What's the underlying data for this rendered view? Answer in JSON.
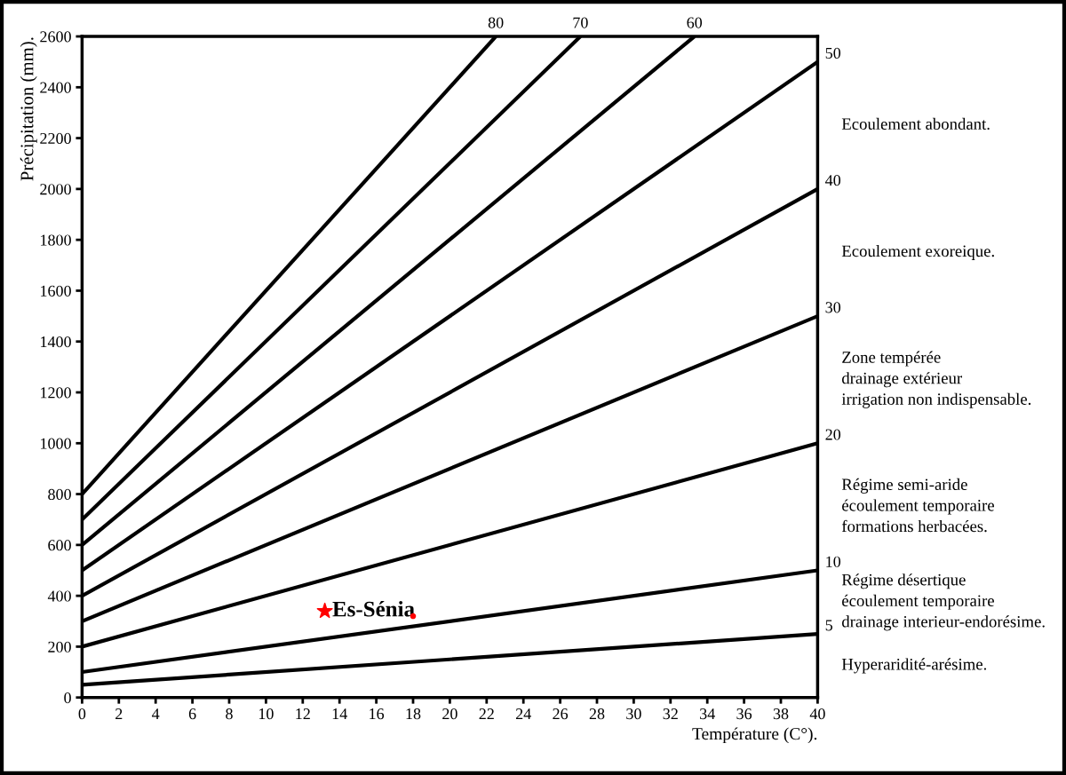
{
  "chart_data": {
    "type": "line",
    "xlabel": "Température (C°).",
    "ylabel": "Précipitation (mm).",
    "xlim": [
      0,
      40
    ],
    "ylim": [
      0,
      2600
    ],
    "xticks": [
      0,
      2,
      4,
      6,
      8,
      10,
      12,
      14,
      16,
      18,
      20,
      22,
      24,
      26,
      28,
      30,
      32,
      34,
      36,
      38,
      40
    ],
    "yticks": [
      0,
      200,
      400,
      600,
      800,
      1000,
      1200,
      1400,
      1600,
      1800,
      2000,
      2200,
      2400,
      2600
    ],
    "grid": false,
    "legend": false,
    "line_style": "solid",
    "series": [
      {
        "name": "80",
        "color": "#000000",
        "x": [
          0,
          22.5
        ],
        "values": [
          800,
          2600
        ]
      },
      {
        "name": "70",
        "color": "#000000",
        "x": [
          0,
          27.1
        ],
        "values": [
          700,
          2600
        ]
      },
      {
        "name": "60",
        "color": "#000000",
        "x": [
          0,
          33.3
        ],
        "values": [
          600,
          2600
        ]
      },
      {
        "name": "50",
        "color": "#000000",
        "x": [
          0,
          40
        ],
        "values": [
          500,
          2500
        ]
      },
      {
        "name": "40",
        "color": "#000000",
        "x": [
          0,
          40
        ],
        "values": [
          400,
          2000
        ]
      },
      {
        "name": "30",
        "color": "#000000",
        "x": [
          0,
          40
        ],
        "values": [
          300,
          1500
        ]
      },
      {
        "name": "20",
        "color": "#000000",
        "x": [
          0,
          40
        ],
        "values": [
          200,
          1000
        ]
      },
      {
        "name": "10",
        "color": "#000000",
        "x": [
          0,
          40
        ],
        "values": [
          100,
          500
        ]
      },
      {
        "name": "5",
        "color": "#000000",
        "x": [
          0,
          40
        ],
        "values": [
          50,
          250
        ]
      },
      {
        "type": "scatter",
        "color": "#ff0000",
        "marker": "star",
        "x": [
          13.2
        ],
        "values": [
          340
        ]
      },
      {
        "type": "scatter",
        "color": "#ff0000",
        "marker": "circle",
        "x": [
          18
        ],
        "values": [
          320
        ]
      }
    ],
    "annotations": [
      {
        "text": "Es-Sénia",
        "x": 13.2,
        "y": 340
      },
      "Ecoulement abondant.",
      "Ecoulement exoreique.",
      "Zone tempérée\ndrainage extérieur\nirrigation non indispensable.",
      "Régime semi-aride\nécoulement temporaire\nformations herbacées.",
      "Régime désertique\nécoulement temporaire\ndrainage interieur-endorésime.",
      "Hyperaridité-arésime."
    ]
  }
}
